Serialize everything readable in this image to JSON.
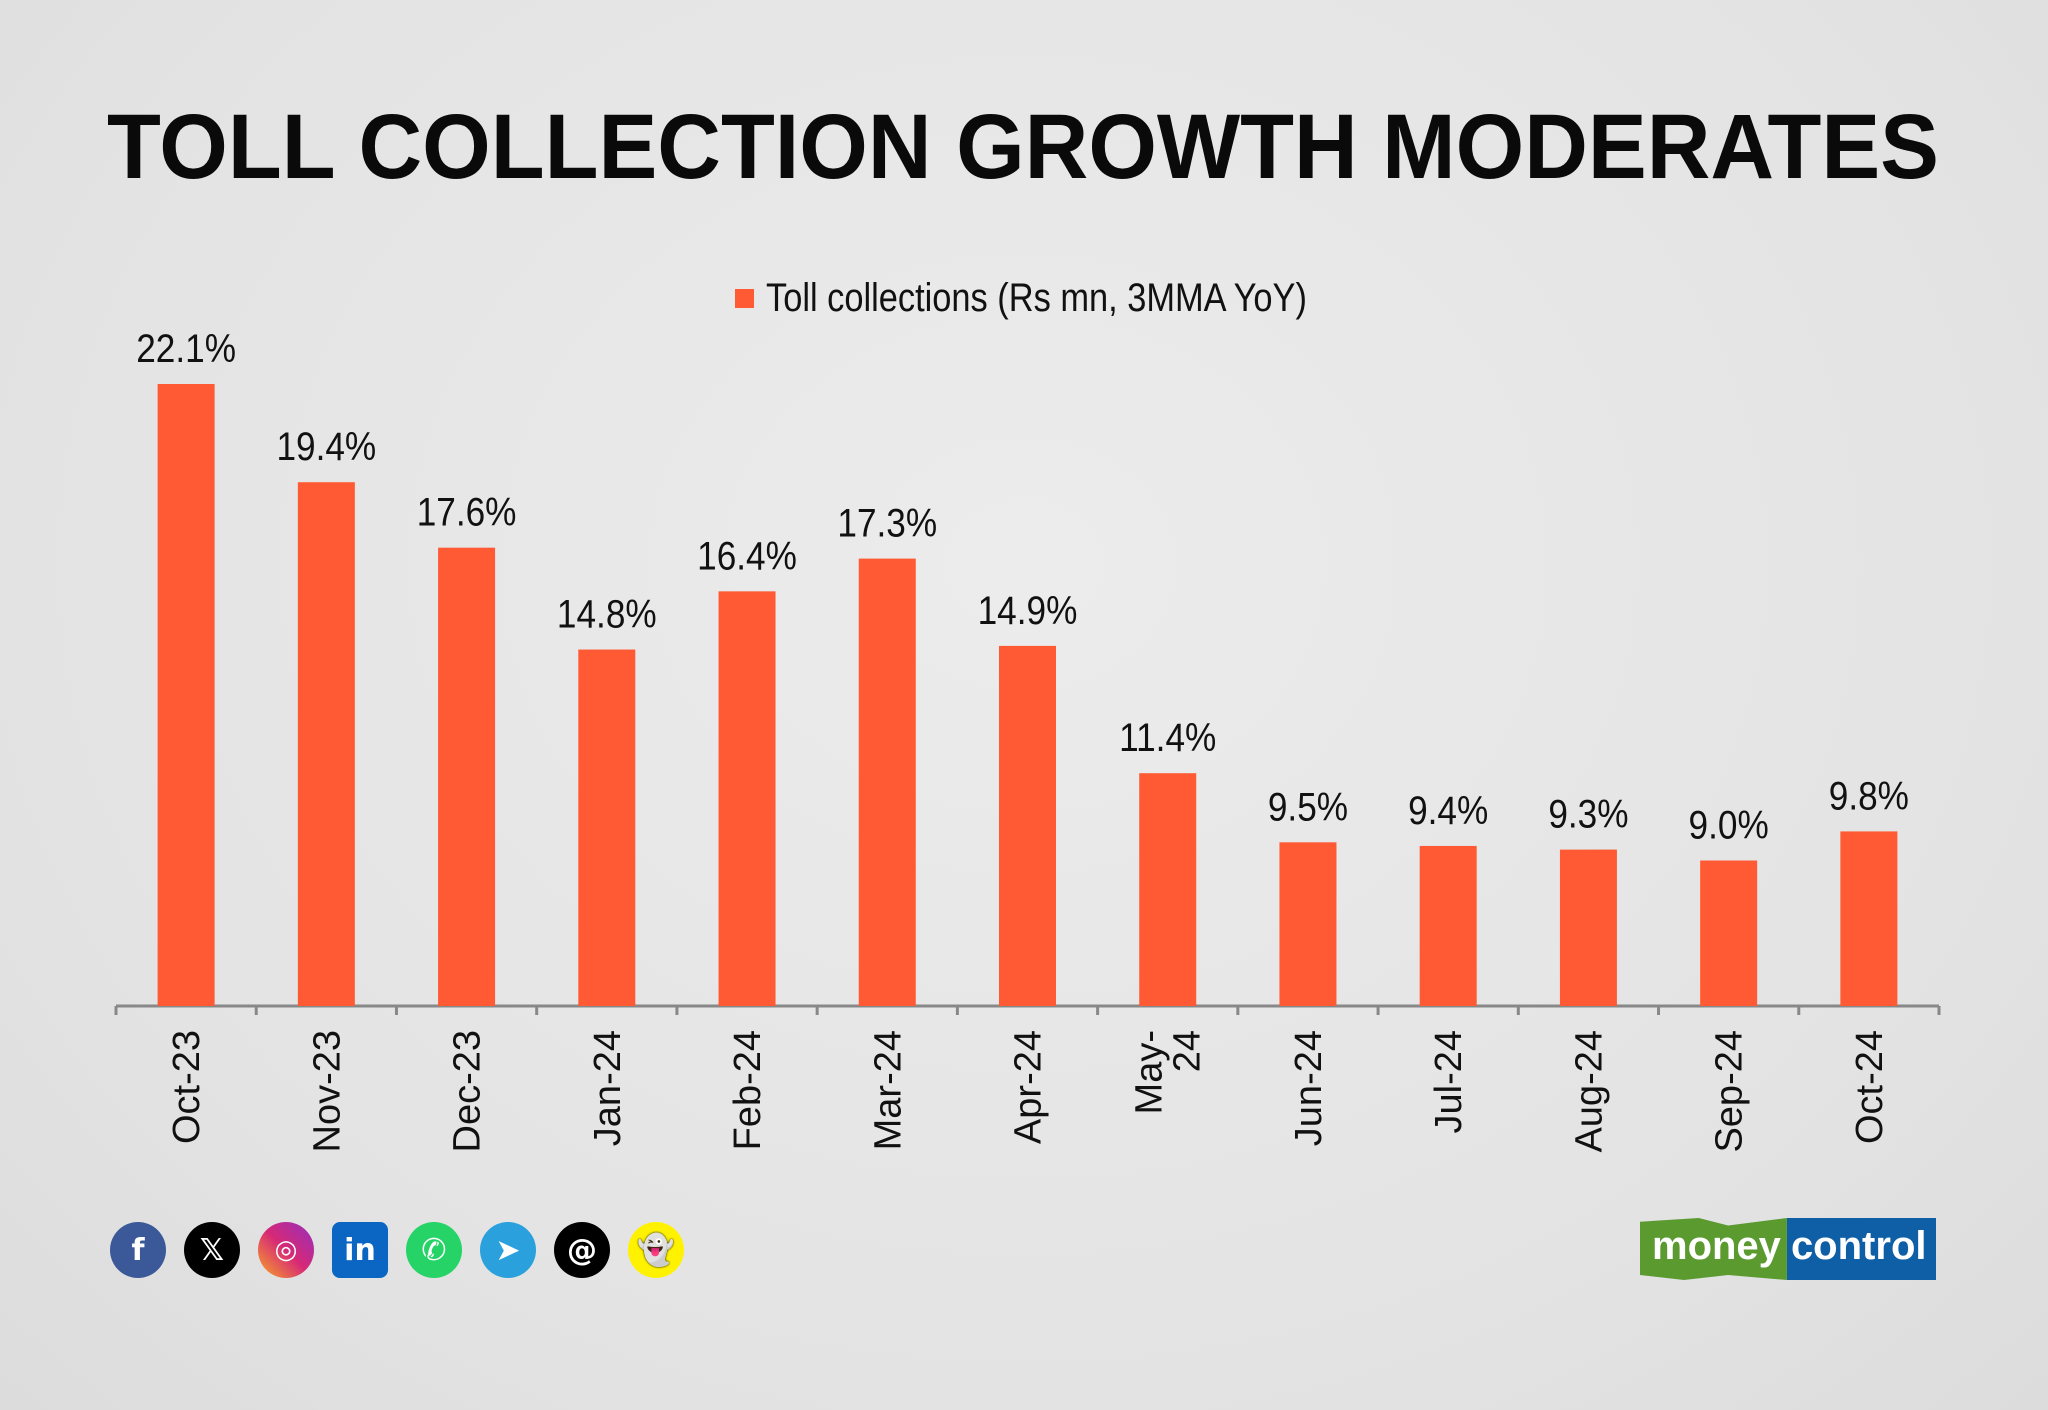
{
  "chart_data": {
    "type": "bar",
    "title": "TOLL COLLECTION GROWTH MODERATES",
    "categories": [
      "Oct-23",
      "Nov-23",
      "Dec-23",
      "Jan-24",
      "Feb-24",
      "Mar-24",
      "Apr-24",
      "May-24",
      "Jun-24",
      "Jul-24",
      "Aug-24",
      "Sep-24",
      "Oct-24"
    ],
    "series": [
      {
        "name": "Toll collections (Rs mn, 3MMA YoY)",
        "values": [
          22.1,
          19.4,
          17.6,
          14.8,
          16.4,
          17.3,
          14.9,
          11.4,
          9.5,
          9.4,
          9.3,
          9.0,
          9.8
        ],
        "color": "#ff5a33"
      }
    ],
    "data_labels": [
      "22.1%",
      "19.4%",
      "17.6%",
      "14.8%",
      "16.4%",
      "17.3%",
      "14.9%",
      "11.4%",
      "9.5%",
      "9.4%",
      "9.3%",
      "9.0%",
      "9.8%"
    ],
    "xlabel": "",
    "ylabel": "",
    "ylim": [
      5,
      23
    ],
    "grid": false,
    "legend": "top-center"
  },
  "social_icons": [
    "facebook-icon",
    "x-icon",
    "instagram-icon",
    "linkedin-icon",
    "whatsapp-icon",
    "telegram-icon",
    "threads-icon",
    "snapchat-icon"
  ],
  "brand": {
    "part1": "money",
    "part2": "control"
  }
}
